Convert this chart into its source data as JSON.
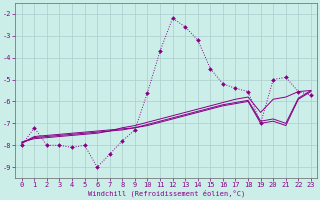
{
  "xlabel": "Windchill (Refroidissement éolien,°C)",
  "background_color": "#cceee8",
  "grid_color": "#aacccc",
  "line_color": "#880088",
  "x_values": [
    0,
    1,
    2,
    3,
    4,
    5,
    6,
    7,
    8,
    9,
    10,
    11,
    12,
    13,
    14,
    15,
    16,
    17,
    18,
    19,
    20,
    21,
    22,
    23
  ],
  "series1": [
    -8.0,
    -7.2,
    -8.0,
    -8.0,
    -8.1,
    -8.0,
    -9.0,
    -8.4,
    -7.8,
    -7.3,
    -5.6,
    -3.7,
    -2.2,
    -2.6,
    -3.2,
    -4.5,
    -5.2,
    -5.4,
    -5.55,
    -7.0,
    -5.0,
    -4.9,
    -5.55,
    -5.7
  ],
  "series2": [
    -7.9,
    -7.6,
    -7.55,
    -7.5,
    -7.45,
    -7.4,
    -7.35,
    -7.3,
    -7.25,
    -7.2,
    -7.1,
    -6.95,
    -6.8,
    -6.65,
    -6.5,
    -6.35,
    -6.2,
    -6.1,
    -6.0,
    -7.0,
    -6.9,
    -7.1,
    -5.9,
    -5.55
  ],
  "series3": [
    -7.9,
    -7.65,
    -7.6,
    -7.55,
    -7.5,
    -7.45,
    -7.4,
    -7.35,
    -7.3,
    -7.2,
    -7.05,
    -6.9,
    -6.75,
    -6.6,
    -6.45,
    -6.3,
    -6.15,
    -6.05,
    -5.95,
    -6.9,
    -6.8,
    -7.0,
    -5.85,
    -5.5
  ],
  "series4": [
    -7.85,
    -7.7,
    -7.65,
    -7.6,
    -7.55,
    -7.5,
    -7.45,
    -7.35,
    -7.2,
    -7.1,
    -6.95,
    -6.8,
    -6.65,
    -6.5,
    -6.35,
    -6.2,
    -6.05,
    -5.9,
    -5.8,
    -6.5,
    -5.9,
    -5.8,
    -5.55,
    -5.5
  ],
  "ylim": [
    -9.5,
    -1.5
  ],
  "yticks": [
    -2,
    -3,
    -4,
    -5,
    -6,
    -7,
    -8,
    -9
  ],
  "xlim": [
    -0.5,
    23.5
  ],
  "xticks": [
    0,
    1,
    2,
    3,
    4,
    5,
    6,
    7,
    8,
    9,
    10,
    11,
    12,
    13,
    14,
    15,
    16,
    17,
    18,
    19,
    20,
    21,
    22,
    23
  ],
  "xlabel_fontsize": 5.0,
  "tick_fontsize": 5.0
}
